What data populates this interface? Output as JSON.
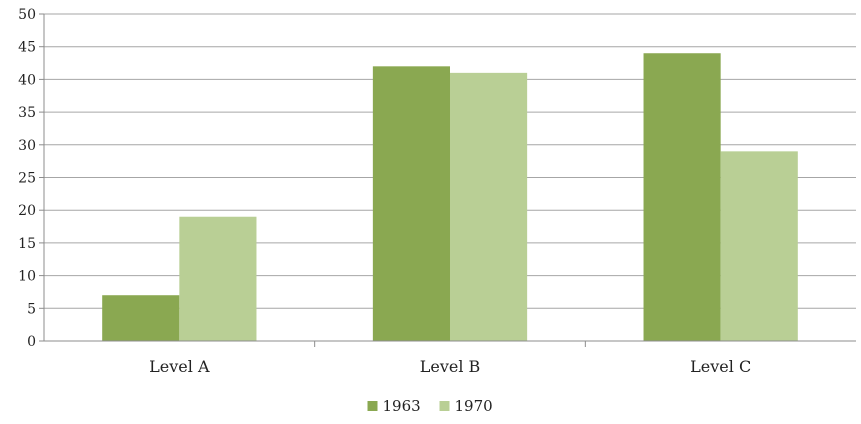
{
  "chart_data": {
    "type": "bar",
    "categories": [
      "Level A",
      "Level B",
      "Level C"
    ],
    "series": [
      {
        "name": "1963",
        "values": [
          7,
          42,
          44
        ],
        "color": "#8aa851"
      },
      {
        "name": "1970",
        "values": [
          19,
          41,
          29
        ],
        "color": "#b9cf95"
      }
    ],
    "yticks": [
      "0",
      "5",
      "10",
      "15",
      "20",
      "25",
      "30",
      "35",
      "40",
      "45",
      "50"
    ],
    "ylim": [
      0,
      50
    ],
    "grid": true,
    "legend_position": "bottom",
    "gridline_color": "#a6a6a6",
    "axis_color": "#8c8c8c"
  }
}
